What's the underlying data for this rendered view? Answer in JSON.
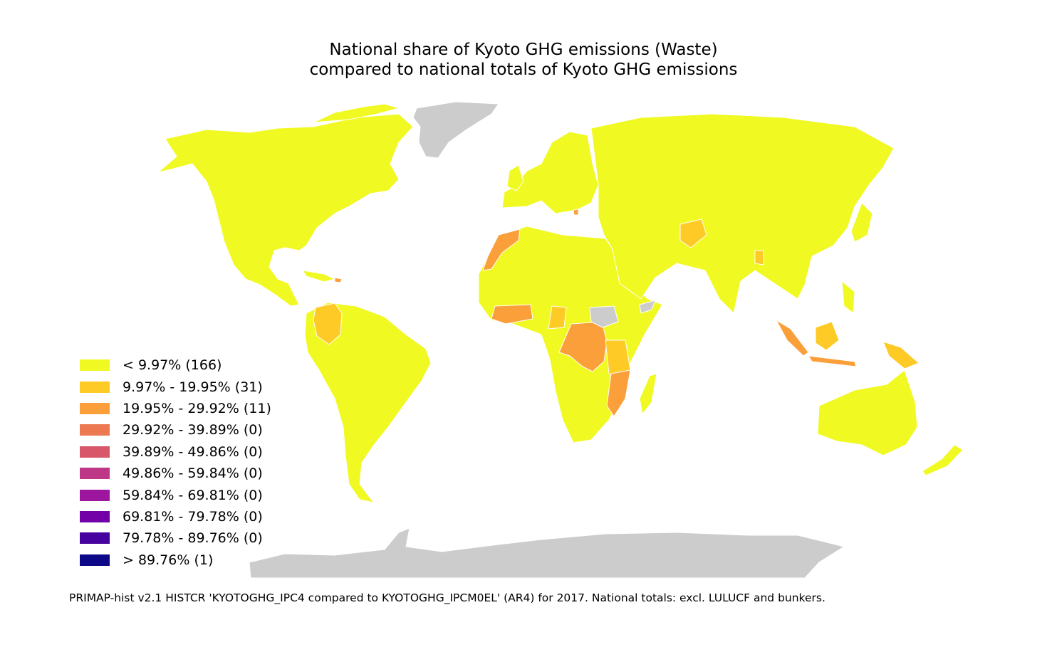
{
  "title": {
    "line1": "National share of Kyoto GHG emissions (Waste)",
    "line2": "compared to national totals of Kyoto GHG emissions"
  },
  "legend": [
    {
      "label": "< 9.97% (166)",
      "color": "#f0f921"
    },
    {
      "label": "9.97% - 19.95% (31)",
      "color": "#fdca26"
    },
    {
      "label": "19.95% - 29.92% (11)",
      "color": "#fb9f3a"
    },
    {
      "label": "29.92% - 39.89% (0)",
      "color": "#ed7953"
    },
    {
      "label": "39.89% - 49.86% (0)",
      "color": "#d8576b"
    },
    {
      "label": "49.86% - 59.84% (0)",
      "color": "#bd3786"
    },
    {
      "label": "59.84% - 69.81% (0)",
      "color": "#9c179e"
    },
    {
      "label": "69.81% - 79.78% (0)",
      "color": "#7201a8"
    },
    {
      "label": "79.78% - 89.76% (0)",
      "color": "#46039f"
    },
    {
      "label": "> 89.76% (1)",
      "color": "#0d0887"
    }
  ],
  "colors": {
    "no_data": "#cccccc",
    "border": "#ffffff"
  },
  "footnote": "PRIMAP-hist v2.1 HISTCR 'KYOTOGHG_IPC4 compared to KYOTOGHG_IPCM0EL' (AR4) for 2017. National totals: excl. LULUCF and bunkers."
}
